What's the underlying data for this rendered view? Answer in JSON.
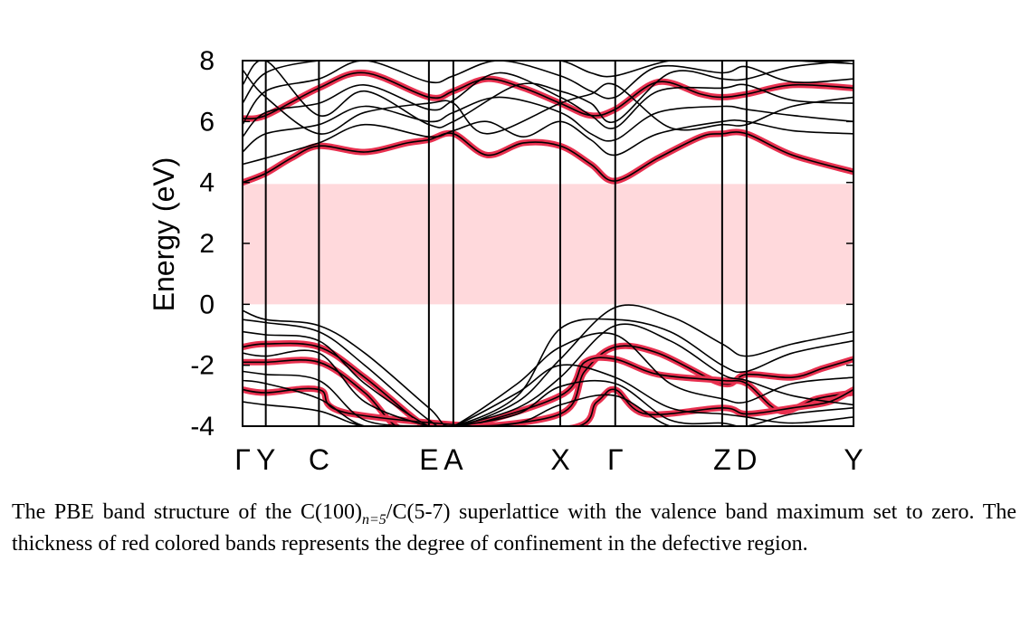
{
  "chart_data": {
    "type": "line",
    "title": "",
    "xlabel": "",
    "ylabel": "Energy (eV)",
    "ylim": [
      -4,
      8
    ],
    "yticks": [
      8,
      6,
      4,
      2,
      0,
      -2,
      -4
    ],
    "k_points": [
      "Γ",
      "Y",
      "C",
      "E",
      "A",
      "X",
      "Γ",
      "Z",
      "D",
      "Y"
    ],
    "k_positions": [
      0,
      0.038,
      0.125,
      0.305,
      0.345,
      0.52,
      0.61,
      0.785,
      0.825,
      1.0
    ],
    "band_gap_region": {
      "from": 0,
      "to": 3.95,
      "color": "#ffd9dc"
    },
    "colors": {
      "bands": "#000000",
      "confined": "#e8304f",
      "gap": "#ffd9dc"
    },
    "series": [
      {
        "type": "confined-band",
        "x": [
          0,
          0.038,
          0.08,
          0.125,
          0.2,
          0.27,
          0.305,
          0.345,
          0.4,
          0.46,
          0.52,
          0.57,
          0.61,
          0.68,
          0.75,
          0.785,
          0.825,
          0.9,
          1.0
        ],
        "values": [
          4.0,
          4.3,
          4.8,
          5.2,
          5.0,
          5.3,
          5.4,
          5.6,
          4.9,
          5.3,
          5.2,
          4.6,
          4.05,
          4.8,
          5.5,
          5.6,
          5.6,
          4.9,
          4.35
        ]
      },
      {
        "type": "confined-band",
        "x": [
          0,
          0.038,
          0.125,
          0.2,
          0.305,
          0.345,
          0.4,
          0.46,
          0.52,
          0.57,
          0.61,
          0.68,
          0.75,
          0.785,
          0.825,
          0.9,
          1.0
        ],
        "values": [
          6.1,
          6.2,
          7.1,
          7.6,
          6.8,
          7.0,
          7.4,
          7.1,
          6.6,
          6.2,
          6.4,
          7.3,
          6.9,
          6.8,
          6.9,
          7.2,
          7.1
        ]
      },
      {
        "type": "confined-band",
        "x": [
          0,
          0.038,
          0.125,
          0.2,
          0.305,
          0.345,
          0.52,
          0.56,
          0.61,
          0.68,
          0.785,
          0.825,
          0.9,
          0.95,
          1.0
        ],
        "values": [
          -1.4,
          -1.3,
          -1.4,
          -2.4,
          -4.1,
          -4.1,
          -3.6,
          -2.2,
          -1.4,
          -1.6,
          -2.6,
          -2.3,
          -2.4,
          -2.1,
          -1.8
        ]
      },
      {
        "type": "confined-band",
        "x": [
          0,
          0.038,
          0.125,
          0.2,
          0.26,
          0.345,
          0.52,
          0.56,
          0.61,
          0.68,
          0.785,
          0.825,
          0.88,
          0.94,
          1.0
        ],
        "values": [
          -1.9,
          -1.9,
          -1.9,
          -2.9,
          -4.1,
          -4.1,
          -3.0,
          -1.9,
          -1.8,
          -2.3,
          -2.5,
          -2.6,
          -3.5,
          -3.1,
          -2.9
        ]
      },
      {
        "type": "confined-band",
        "x": [
          0,
          0.038,
          0.125,
          0.18,
          0.52,
          0.58,
          0.61,
          0.66,
          0.785,
          0.825,
          0.9,
          0.96,
          1.0
        ],
        "values": [
          -2.8,
          -2.9,
          -2.8,
          -3.6,
          -4.1,
          -3.2,
          -2.8,
          -3.6,
          -3.4,
          -3.6,
          -3.4,
          -3.2,
          -2.8
        ]
      },
      {
        "type": "band",
        "x": [
          0,
          0.038,
          0.125,
          0.2,
          0.305,
          0.345,
          0.4,
          0.46,
          0.52,
          0.57,
          0.61,
          0.68,
          0.785,
          0.825,
          0.9,
          1.0
        ],
        "values": [
          4.6,
          4.8,
          5.3,
          5.9,
          5.5,
          5.7,
          6.0,
          5.5,
          6.0,
          5.4,
          4.9,
          5.6,
          6.0,
          6.0,
          5.7,
          5.6
        ]
      },
      {
        "type": "band",
        "x": [
          0,
          0.038,
          0.125,
          0.2,
          0.305,
          0.345,
          0.42,
          0.52,
          0.57,
          0.61,
          0.68,
          0.785,
          0.825,
          0.9,
          1.0
        ],
        "values": [
          5.0,
          5.6,
          5.9,
          6.5,
          6.0,
          6.3,
          6.8,
          6.3,
          5.6,
          5.4,
          6.3,
          6.5,
          6.4,
          6.2,
          6.0
        ]
      },
      {
        "type": "band",
        "x": [
          0,
          0.038,
          0.125,
          0.2,
          0.305,
          0.345,
          0.42,
          0.52,
          0.57,
          0.61,
          0.68,
          0.785,
          0.825,
          0.9,
          1.0
        ],
        "values": [
          5.5,
          6.3,
          6.6,
          7.2,
          6.4,
          6.7,
          7.6,
          6.8,
          6.2,
          5.8,
          7.0,
          7.1,
          7.2,
          6.7,
          6.6
        ]
      },
      {
        "type": "band",
        "x": [
          0,
          0.038,
          0.125,
          0.2,
          0.305,
          0.345,
          0.42,
          0.52,
          0.57,
          0.61,
          0.68,
          0.785,
          0.825,
          0.9,
          1.0
        ],
        "values": [
          5.9,
          7.0,
          7.4,
          8.0,
          7.3,
          7.5,
          8.0,
          7.5,
          7.0,
          6.8,
          7.8,
          7.6,
          7.8,
          7.3,
          7.4
        ]
      },
      {
        "type": "band",
        "x": [
          0,
          0.038,
          0.125,
          0.2,
          0.305,
          0.345,
          0.45,
          0.52,
          0.57,
          0.61,
          0.7,
          0.785,
          0.825,
          0.9,
          1.0
        ],
        "values": [
          6.6,
          7.6,
          8.0,
          8.0,
          8.0,
          8.0,
          8.0,
          8.0,
          7.6,
          7.5,
          8.0,
          8.0,
          8.0,
          8.0,
          7.9
        ]
      },
      {
        "type": "band",
        "x": [
          0,
          0.038,
          0.125,
          0.2,
          0.305,
          0.345,
          0.45,
          0.52,
          0.57,
          0.61,
          0.7,
          0.785,
          0.825,
          0.9,
          1.0
        ],
        "values": [
          7.2,
          8.0,
          6.2,
          7.0,
          5.9,
          6.0,
          7.2,
          7.0,
          6.6,
          6.0,
          7.6,
          7.4,
          7.4,
          7.8,
          8.0
        ]
      },
      {
        "type": "band",
        "x": [
          0,
          0.038,
          0.125,
          0.2,
          0.305,
          0.345,
          0.4,
          0.52,
          0.57,
          0.61,
          0.7,
          0.785,
          0.825,
          0.9,
          1.0
        ],
        "values": [
          7.7,
          6.8,
          5.6,
          6.3,
          6.6,
          6.6,
          5.6,
          6.6,
          6.9,
          7.2,
          5.8,
          5.9,
          5.9,
          6.5,
          6.8
        ]
      },
      {
        "type": "band",
        "x": [
          0,
          0.038,
          0.125,
          0.2,
          0.305,
          0.345,
          0.45,
          0.52,
          0.61,
          0.7,
          0.785,
          0.825,
          0.9,
          1.0
        ],
        "values": [
          -0.2,
          -0.5,
          -0.7,
          -1.6,
          -3.4,
          -4.0,
          -3.2,
          -1.8,
          -0.1,
          -0.4,
          -1.3,
          -1.7,
          -1.3,
          -0.9
        ]
      },
      {
        "type": "band",
        "x": [
          0,
          0.038,
          0.125,
          0.2,
          0.305,
          0.345,
          0.45,
          0.52,
          0.61,
          0.7,
          0.785,
          0.825,
          0.9,
          1.0
        ],
        "values": [
          -0.5,
          -0.6,
          -0.9,
          -2.0,
          -3.8,
          -4.0,
          -3.0,
          -0.8,
          -0.5,
          -0.9,
          -2.0,
          -2.2,
          -1.6,
          -1.2
        ]
      },
      {
        "type": "band",
        "x": [
          0,
          0.038,
          0.125,
          0.2,
          0.305,
          0.345,
          0.45,
          0.52,
          0.61,
          0.7,
          0.785,
          0.825,
          0.9,
          1.0
        ],
        "values": [
          -0.9,
          -1.0,
          -1.2,
          -2.6,
          -4.0,
          -4.0,
          -3.4,
          -2.4,
          -0.7,
          -1.2,
          -2.3,
          -2.5,
          -3.0,
          -3.3
        ]
      },
      {
        "type": "band",
        "x": [
          0,
          0.038,
          0.125,
          0.2,
          0.305,
          0.345,
          0.45,
          0.52,
          0.61,
          0.7,
          0.785,
          0.825,
          0.9,
          1.0
        ],
        "values": [
          -1.6,
          -1.7,
          -1.6,
          -3.2,
          -4.0,
          -4.0,
          -2.6,
          -1.4,
          -1.0,
          -2.6,
          -3.1,
          -3.2,
          -2.6,
          -2.4
        ]
      },
      {
        "type": "band",
        "x": [
          0,
          0.038,
          0.125,
          0.2,
          0.305,
          0.345,
          0.45,
          0.52,
          0.61,
          0.7,
          0.785,
          0.825,
          0.9,
          1.0
        ],
        "values": [
          -2.2,
          -2.3,
          -2.5,
          -3.8,
          -4.0,
          -4.0,
          -2.9,
          -2.0,
          -2.4,
          -3.4,
          -3.6,
          -3.7,
          -3.9,
          -3.7
        ]
      },
      {
        "type": "band",
        "x": [
          0,
          0.038,
          0.125,
          0.2,
          0.305,
          0.345,
          0.45,
          0.52,
          0.61,
          0.7,
          0.785,
          0.825,
          0.9,
          1.0
        ],
        "values": [
          -2.5,
          -2.6,
          -3.1,
          -4.0,
          -4.0,
          -4.0,
          -3.6,
          -2.7,
          -2.6,
          -3.8,
          -3.9,
          -4.0,
          -3.6,
          -3.4
        ]
      },
      {
        "type": "band",
        "x": [
          0,
          0.038,
          0.125,
          0.2,
          0.305,
          0.345,
          0.45,
          0.52,
          0.61,
          0.7,
          0.785,
          0.825,
          0.9,
          1.0
        ],
        "values": [
          -3.2,
          -3.3,
          -3.5,
          -4.0,
          -4.0,
          -4.0,
          -3.9,
          -3.3,
          -3.0,
          -4.0,
          -4.0,
          -4.0,
          -4.0,
          -4.0
        ]
      }
    ]
  },
  "caption": {
    "part1": "The PBE band structure of the C(100)",
    "sub": "n=5",
    "part2": "/C(5-7) superlattice with the valence band maximum set to zero. The thickness of red colored bands represents the degree of confinement in the defective region."
  }
}
